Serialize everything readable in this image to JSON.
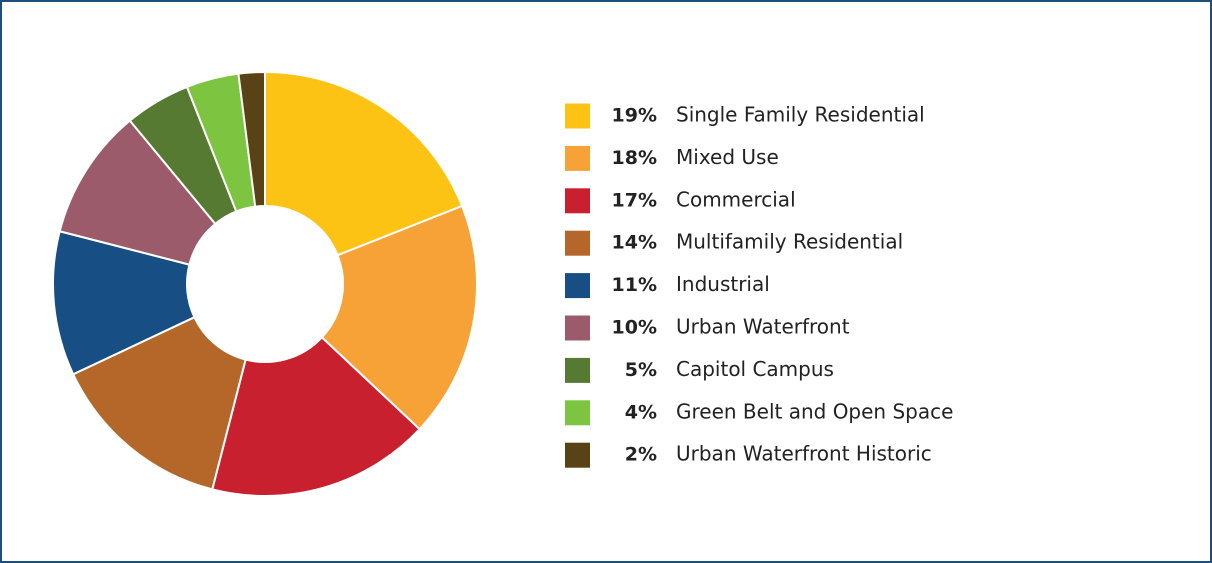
{
  "chart_data": {
    "type": "pie",
    "categories": [
      "Single Family Residential",
      "Mixed Use",
      "Commercial",
      "Multifamily Residential",
      "Industrial",
      "Urban Waterfront",
      "Capitol Campus",
      "Green Belt and Open Space",
      "Urban Waterfront Historic"
    ],
    "values": [
      19,
      18,
      17,
      14,
      11,
      10,
      5,
      4,
      2
    ],
    "value_labels": [
      "19%",
      "18%",
      "17%",
      "14%",
      "11%",
      "10%",
      "5%",
      "4%",
      "2%"
    ],
    "colors": [
      "#fdc314",
      "#f7a236",
      "#c8202f",
      "#b5672a",
      "#174f84",
      "#9c5b6a",
      "#567a32",
      "#7dc440",
      "#5a4217"
    ],
    "donut": true
  }
}
